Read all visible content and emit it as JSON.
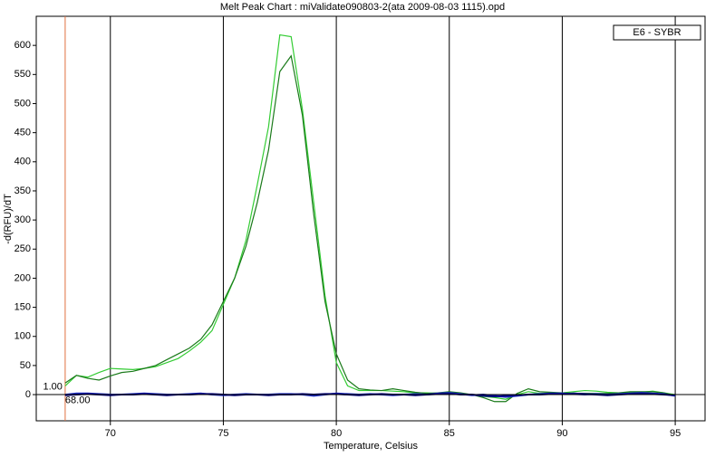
{
  "chart_data": {
    "type": "line",
    "title": "Melt Peak Chart : miValidate090803-2(ata 2009-08-03 1115).opd",
    "xlabel": "Temperature, Celsius",
    "ylabel": "-d(RFU)/dT",
    "legend_label": "E6 - SYBR",
    "cursor_x": {
      "value": 68,
      "label": "68.00"
    },
    "cursor_y": {
      "value": 1,
      "label": "1.00"
    },
    "cursor_color": "#e07040",
    "xlim": [
      66.72,
      96.32
    ],
    "ylim": [
      -45,
      650
    ],
    "xticks": [
      70,
      75,
      80,
      85,
      90,
      95
    ],
    "yticks": [
      0,
      50,
      100,
      150,
      200,
      250,
      300,
      350,
      400,
      450,
      500,
      550,
      600
    ],
    "grid": true,
    "zero_line": true,
    "x": [
      68,
      68.5,
      69,
      69.5,
      70,
      70.5,
      71,
      71.5,
      72,
      72.5,
      73,
      73.5,
      74,
      74.5,
      75,
      75.5,
      76,
      76.5,
      77,
      77.5,
      78,
      78.5,
      79,
      79.5,
      80,
      80.5,
      81,
      81.5,
      82,
      82.5,
      83,
      83.5,
      84,
      84.5,
      85,
      85.5,
      86,
      86.5,
      87,
      87.5,
      88,
      88.5,
      89,
      89.5,
      90,
      90.5,
      91,
      91.5,
      92,
      92.5,
      93,
      93.5,
      94,
      94.5,
      95
    ],
    "series": [
      {
        "color": "#33cc33",
        "values": [
          15,
          33,
          30,
          38,
          45,
          44,
          43,
          45,
          48,
          55,
          62,
          75,
          90,
          110,
          155,
          200,
          265,
          360,
          460,
          618,
          615,
          490,
          330,
          170,
          55,
          15,
          7,
          7,
          7,
          6,
          5,
          3,
          3,
          2,
          2,
          1,
          0,
          -3,
          -5,
          -8,
          0,
          5,
          2,
          3,
          3,
          5,
          7,
          6,
          4,
          3,
          3,
          4,
          6,
          3,
          0
        ]
      },
      {
        "color": "#1a7a1a",
        "values": [
          20,
          33,
          28,
          25,
          32,
          38,
          40,
          45,
          50,
          60,
          70,
          80,
          95,
          120,
          160,
          200,
          255,
          330,
          420,
          555,
          582,
          480,
          310,
          160,
          70,
          25,
          10,
          8,
          7,
          10,
          7,
          4,
          2,
          3,
          5,
          3,
          0,
          -5,
          -12,
          -12,
          2,
          10,
          5,
          4,
          3,
          2,
          2,
          2,
          2,
          3,
          5,
          5,
          5,
          3,
          -2
        ]
      },
      {
        "color": "#2233cc",
        "values": [
          0,
          2,
          2,
          1,
          0,
          0,
          1,
          2,
          1,
          0,
          0,
          1,
          2,
          0,
          -1,
          0,
          1,
          0,
          0,
          1,
          1,
          0,
          -2,
          0,
          2,
          1,
          0,
          1,
          0,
          -1,
          0,
          1,
          0,
          2,
          3,
          1,
          -1,
          0,
          -2,
          -4,
          -2,
          0,
          1,
          2,
          2,
          1,
          0,
          1,
          0,
          1,
          2,
          3,
          2,
          1,
          -2
        ]
      },
      {
        "color": "#000080",
        "values": [
          -1,
          0,
          1,
          0,
          -1,
          0,
          0,
          1,
          0,
          -1,
          0,
          0,
          1,
          1,
          0,
          -1,
          0,
          0,
          -1,
          0,
          0,
          1,
          0,
          1,
          1,
          0,
          -1,
          0,
          1,
          0,
          0,
          -1,
          0,
          1,
          2,
          0,
          0,
          -2,
          -3,
          -2,
          -1,
          0,
          0,
          1,
          1,
          2,
          1,
          0,
          -1,
          0,
          1,
          2,
          1,
          0,
          -1
        ]
      }
    ]
  }
}
